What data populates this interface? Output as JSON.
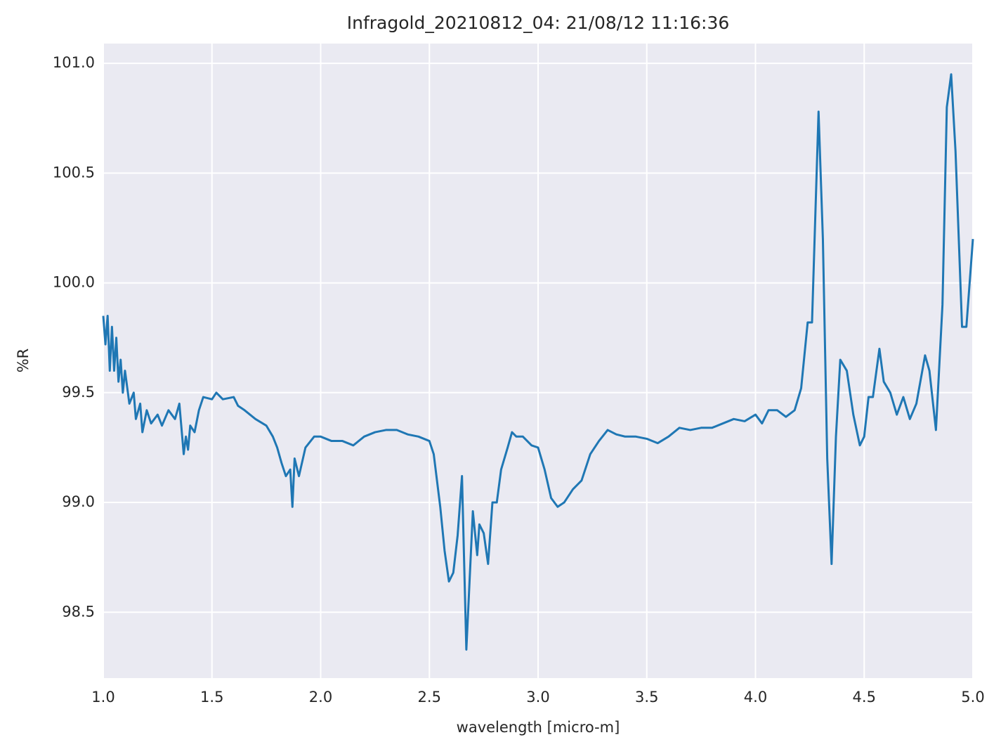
{
  "chart_data": {
    "type": "line",
    "title": "Infragold_20210812_04:  21/08/12 11:16:36",
    "xlabel": "wavelength [micro-m]",
    "ylabel": "%R",
    "x": [
      1.0,
      1.01,
      1.02,
      1.03,
      1.04,
      1.05,
      1.06,
      1.07,
      1.08,
      1.09,
      1.1,
      1.12,
      1.14,
      1.15,
      1.17,
      1.18,
      1.2,
      1.22,
      1.25,
      1.27,
      1.3,
      1.33,
      1.35,
      1.37,
      1.38,
      1.39,
      1.4,
      1.42,
      1.44,
      1.46,
      1.5,
      1.52,
      1.55,
      1.6,
      1.62,
      1.65,
      1.7,
      1.75,
      1.78,
      1.8,
      1.82,
      1.84,
      1.86,
      1.87,
      1.88,
      1.9,
      1.93,
      1.97,
      2.0,
      2.05,
      2.1,
      2.15,
      2.2,
      2.25,
      2.3,
      2.35,
      2.4,
      2.45,
      2.5,
      2.52,
      2.55,
      2.57,
      2.59,
      2.61,
      2.63,
      2.65,
      2.67,
      2.7,
      2.72,
      2.73,
      2.75,
      2.77,
      2.79,
      2.81,
      2.83,
      2.86,
      2.88,
      2.9,
      2.93,
      2.97,
      3.0,
      3.03,
      3.06,
      3.09,
      3.12,
      3.16,
      3.2,
      3.24,
      3.28,
      3.32,
      3.36,
      3.4,
      3.45,
      3.5,
      3.55,
      3.6,
      3.65,
      3.7,
      3.75,
      3.8,
      3.85,
      3.9,
      3.95,
      4.0,
      4.03,
      4.06,
      4.1,
      4.14,
      4.18,
      4.21,
      4.24,
      4.26,
      4.29,
      4.31,
      4.33,
      4.35,
      4.37,
      4.39,
      4.42,
      4.45,
      4.48,
      4.5,
      4.52,
      4.54,
      4.57,
      4.59,
      4.62,
      4.65,
      4.68,
      4.71,
      4.74,
      4.78,
      4.8,
      4.83,
      4.86,
      4.88,
      4.9,
      4.92,
      4.95,
      4.97,
      5.0
    ],
    "values": [
      99.85,
      99.72,
      99.85,
      99.6,
      99.8,
      99.6,
      99.75,
      99.55,
      99.65,
      99.5,
      99.6,
      99.45,
      99.5,
      99.38,
      99.45,
      99.32,
      99.42,
      99.36,
      99.4,
      99.35,
      99.42,
      99.38,
      99.45,
      99.22,
      99.3,
      99.24,
      99.35,
      99.32,
      99.42,
      99.48,
      99.47,
      99.5,
      99.47,
      99.48,
      99.44,
      99.42,
      99.38,
      99.35,
      99.3,
      99.25,
      99.18,
      99.12,
      99.15,
      98.98,
      99.2,
      99.12,
      99.25,
      99.3,
      99.3,
      99.28,
      99.28,
      99.26,
      99.3,
      99.32,
      99.33,
      99.33,
      99.31,
      99.3,
      99.28,
      99.22,
      98.98,
      98.78,
      98.64,
      98.68,
      98.85,
      99.12,
      98.33,
      98.96,
      98.76,
      98.9,
      98.86,
      98.72,
      99.0,
      99.0,
      99.15,
      99.25,
      99.32,
      99.3,
      99.3,
      99.26,
      99.25,
      99.15,
      99.02,
      98.98,
      99.0,
      99.06,
      99.1,
      99.22,
      99.28,
      99.33,
      99.31,
      99.3,
      99.3,
      99.29,
      99.27,
      99.3,
      99.34,
      99.33,
      99.34,
      99.34,
      99.36,
      99.38,
      99.37,
      99.4,
      99.36,
      99.42,
      99.42,
      99.39,
      99.42,
      99.52,
      99.82,
      99.82,
      100.78,
      100.2,
      99.2,
      98.72,
      99.3,
      99.65,
      99.6,
      99.4,
      99.26,
      99.3,
      99.48,
      99.48,
      99.7,
      99.55,
      99.5,
      99.4,
      99.48,
      99.38,
      99.45,
      99.67,
      99.6,
      99.33,
      99.9,
      100.8,
      100.95,
      100.6,
      99.8,
      99.8,
      100.2
    ],
    "color": "#1f77b4",
    "xlim": [
      1.0,
      5.0
    ],
    "xticks": [
      {
        "value": 1.0,
        "label": "1.0"
      },
      1.5,
      {
        "value": 2.0,
        "label": "2.0"
      },
      2.5,
      {
        "value": 3.0,
        "label": "3.0"
      },
      3.5,
      {
        "value": 4.0,
        "label": "4.0"
      },
      4.5,
      {
        "value": 5.0,
        "label": "5.0"
      }
    ],
    "ylim": [
      98.2,
      101.09
    ],
    "yticks": [
      98.5,
      {
        "value": 99.0,
        "label": "99.0"
      },
      99.5,
      {
        "value": 100.0,
        "label": "100.0"
      },
      100.5,
      {
        "value": 101.0,
        "label": "101.0"
      }
    ],
    "grid": true
  }
}
